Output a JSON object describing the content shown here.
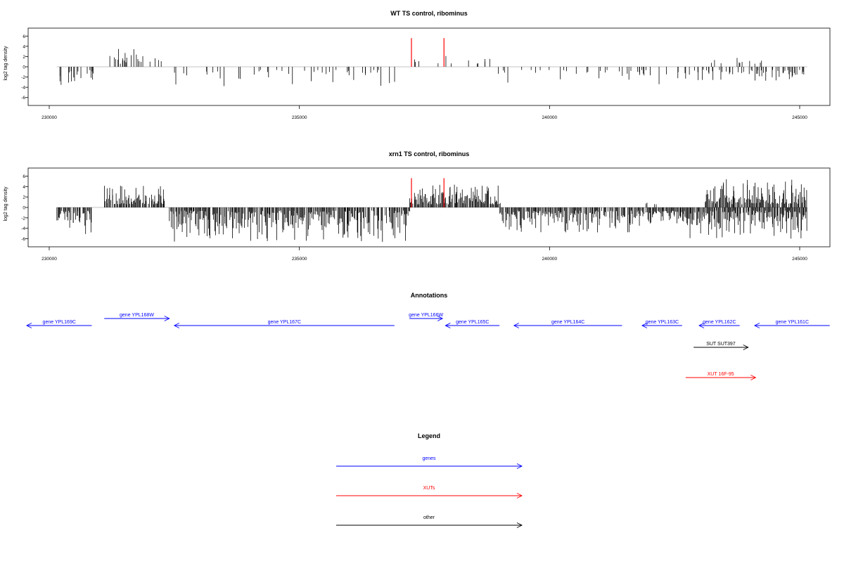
{
  "chart_data": [
    {
      "type": "bar",
      "title": "WT TS control, ribominus",
      "ylabel": "log2 tag density",
      "ylim": [
        -7,
        7
      ],
      "yticks": [
        -6,
        -4,
        -2,
        0,
        2,
        4,
        6
      ],
      "xlim": [
        229600,
        245600
      ],
      "xticks": [
        "230000",
        "235000",
        "240000",
        "245000"
      ],
      "xtick_values": [
        230000,
        235000,
        240000,
        245000
      ],
      "grid": false,
      "series": [
        {
          "style": "density-bars",
          "color": "#000000",
          "seed": 7,
          "segments": [
            {
              "start": 230200,
              "end": 230900,
              "sign": -1,
              "density": 0.35,
              "max": 3.8
            },
            {
              "start": 231150,
              "end": 231900,
              "sign": 1,
              "density": 0.25,
              "max": 3.6
            },
            {
              "start": 231900,
              "end": 232300,
              "sign": 1,
              "density": 0.08,
              "max": 2.3
            },
            {
              "start": 232200,
              "end": 233200,
              "sign": -1,
              "density": 0.12,
              "max": 3.8
            },
            {
              "start": 233200,
              "end": 237200,
              "sign": -1,
              "density": 0.12,
              "max": 4.0
            },
            {
              "start": 237300,
              "end": 238900,
              "sign": 1,
              "density": 0.12,
              "max": 2.8
            },
            {
              "start": 238900,
              "end": 241800,
              "sign": -1,
              "density": 0.14,
              "max": 3.2
            },
            {
              "start": 241800,
              "end": 243200,
              "sign": -1,
              "density": 0.25,
              "max": 3.6
            },
            {
              "start": 243200,
              "end": 244300,
              "sign": 1,
              "density": 0.18,
              "max": 2.6
            },
            {
              "start": 243200,
              "end": 245100,
              "sign": -1,
              "density": 0.3,
              "max": 2.8
            }
          ]
        },
        {
          "style": "highlight-bars",
          "color": "#ff0000",
          "x": [
            237240,
            237890
          ],
          "values": [
            5.6,
            5.6
          ]
        }
      ]
    },
    {
      "type": "bar",
      "title": "xrn1 TS control, ribominus",
      "ylabel": "log2 tag density",
      "ylim": [
        -7,
        7
      ],
      "yticks": [
        -6,
        -4,
        -2,
        0,
        2,
        4,
        6
      ],
      "xlim": [
        229600,
        245600
      ],
      "xticks": [
        "230000",
        "235000",
        "240000",
        "245000"
      ],
      "xtick_values": [
        230000,
        235000,
        240000,
        245000
      ],
      "grid": false,
      "series": [
        {
          "style": "density-bars",
          "color": "#000000",
          "seed": 13,
          "segments": [
            {
              "start": 230150,
              "end": 230850,
              "sign": -1,
              "density": 0.9,
              "max": 5.2
            },
            {
              "start": 231100,
              "end": 232300,
              "sign": 1,
              "density": 0.9,
              "max": 4.5
            },
            {
              "start": 232400,
              "end": 237200,
              "sign": -1,
              "density": 0.85,
              "max": 6.6
            },
            {
              "start": 237200,
              "end": 239000,
              "sign": 1,
              "density": 0.9,
              "max": 4.4
            },
            {
              "start": 239000,
              "end": 242600,
              "sign": -1,
              "density": 0.85,
              "max": 4.8
            },
            {
              "start": 241900,
              "end": 242200,
              "sign": 1,
              "density": 0.2,
              "max": 1.4
            },
            {
              "start": 242600,
              "end": 245150,
              "sign": -1,
              "density": 0.95,
              "max": 6.0
            },
            {
              "start": 243100,
              "end": 245150,
              "sign": 1,
              "density": 0.85,
              "max": 5.6
            }
          ]
        },
        {
          "style": "highlight-bars",
          "color": "#ff0000",
          "x": [
            237240,
            237890
          ],
          "values": [
            5.6,
            5.6
          ]
        }
      ]
    }
  ],
  "annotations": {
    "title": "Annotations",
    "features": [
      {
        "label": "gene YPL169C",
        "start": 229550,
        "end": 230850,
        "strand": "-",
        "row": 1,
        "color": "#0000ff"
      },
      {
        "label": "gene YPL168W",
        "start": 231100,
        "end": 232400,
        "strand": "+",
        "row": 0,
        "color": "#0000ff"
      },
      {
        "label": "gene YPL167C",
        "start": 232500,
        "end": 236900,
        "strand": "-",
        "row": 1,
        "color": "#0000ff"
      },
      {
        "label": "gene YPL166W",
        "start": 237200,
        "end": 237860,
        "strand": "+",
        "row": 0,
        "color": "#0000ff"
      },
      {
        "label": "gene YPL165C",
        "start": 237920,
        "end": 239000,
        "strand": "-",
        "row": 1,
        "color": "#0000ff"
      },
      {
        "label": "gene YPL164C",
        "start": 239290,
        "end": 241450,
        "strand": "-",
        "row": 1,
        "color": "#0000ff"
      },
      {
        "label": "gene YPL163C",
        "start": 241850,
        "end": 242650,
        "strand": "-",
        "row": 1,
        "color": "#0000ff"
      },
      {
        "label": "gene YPL162C",
        "start": 242990,
        "end": 243800,
        "strand": "-",
        "row": 1,
        "color": "#0000ff"
      },
      {
        "label": "gene YPL161C",
        "start": 244100,
        "end": 245600,
        "strand": "-",
        "row": 1,
        "color": "#0000ff"
      },
      {
        "label": "SUT SUT397",
        "start": 242880,
        "end": 243970,
        "strand": "+",
        "row": 2,
        "color": "#000000"
      },
      {
        "label": "XUT 16F-95",
        "start": 242720,
        "end": 244120,
        "strand": "+",
        "row": 3,
        "color": "#ff0000"
      }
    ]
  },
  "legend": {
    "title": "Legend",
    "items": [
      {
        "label": "genes",
        "color": "#0000ff"
      },
      {
        "label": "XUTs",
        "color": "#ff0000"
      },
      {
        "label": "other",
        "color": "#000000"
      }
    ]
  }
}
